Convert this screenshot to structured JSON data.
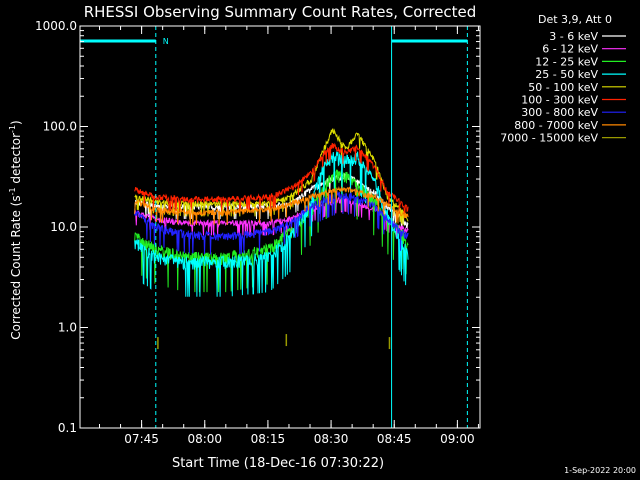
{
  "chart_data": {
    "type": "line",
    "title": "RHESSI Observing Summary Count Rates, Corrected",
    "xlabel": "Start Time (18-Dec-16 07:30:22)",
    "ylabel_main": "Corrected Count Rate (s",
    "ylabel_exp1": "-1",
    "ylabel_mid": " detector",
    "ylabel_exp2": "-1",
    "ylabel_end": ")",
    "yscale": "log",
    "ylim": [
      0.1,
      1000.0
    ],
    "xlim_minutes": [
      0.0,
      95.0
    ],
    "yticks": [
      {
        "value": 1000.0,
        "label": "1000.0"
      },
      {
        "value": 100.0,
        "label": "100.0"
      },
      {
        "value": 10.0,
        "label": "10.0"
      },
      {
        "value": 1.0,
        "label": "1.0"
      },
      {
        "value": 0.1,
        "label": "0.1"
      }
    ],
    "xticks": [
      {
        "minute": 14.63,
        "label": "07:45"
      },
      {
        "minute": 29.63,
        "label": "08:00"
      },
      {
        "minute": 44.63,
        "label": "08:15"
      },
      {
        "minute": 59.63,
        "label": "08:30"
      },
      {
        "minute": 74.63,
        "label": "08:45"
      },
      {
        "minute": 89.63,
        "label": "09:00"
      }
    ],
    "legend_header": "Det 3,9, Att 0",
    "legend_position": "right",
    "series": [
      {
        "name": "3 - 6 keV",
        "color": "#ffffff",
        "x": [
          13,
          18,
          25,
          35,
          45,
          50,
          55,
          60,
          63,
          66,
          70,
          73,
          76,
          78
        ],
        "values": [
          18,
          16,
          16,
          16,
          16,
          17,
          24,
          30,
          32,
          28,
          22,
          16,
          13,
          10
        ]
      },
      {
        "name": "6 - 12 keV",
        "color": "#ff33ff",
        "x": [
          13,
          18,
          25,
          35,
          45,
          50,
          55,
          60,
          63,
          66,
          70,
          73,
          76,
          78
        ],
        "values": [
          14,
          12,
          11,
          11,
          11,
          12,
          15,
          18,
          19,
          17,
          15,
          12,
          10,
          9
        ]
      },
      {
        "name": "12 - 25 keV",
        "color": "#22ee22",
        "x": [
          13,
          18,
          25,
          35,
          45,
          50,
          55,
          58,
          60,
          63,
          66,
          70,
          73,
          76,
          78
        ],
        "values": [
          8,
          6,
          5,
          5,
          6,
          9,
          15,
          25,
          33,
          32,
          26,
          18,
          12,
          9,
          7
        ]
      },
      {
        "name": "25 - 50 keV",
        "color": "#00ffff",
        "x": [
          13,
          18,
          25,
          35,
          45,
          50,
          55,
          58,
          60,
          63,
          66,
          70,
          73,
          76,
          78
        ],
        "values": [
          7,
          5,
          4.5,
          4.5,
          5,
          8,
          18,
          40,
          52,
          45,
          50,
          28,
          13,
          8,
          5
        ]
      },
      {
        "name": "50 - 100 keV",
        "color": "#dddd00",
        "x": [
          13,
          18,
          25,
          35,
          45,
          50,
          55,
          58,
          60,
          63,
          66,
          70,
          73,
          76,
          78
        ],
        "values": [
          20,
          18,
          17,
          17,
          17,
          20,
          30,
          60,
          95,
          60,
          85,
          45,
          20,
          15,
          12
        ]
      },
      {
        "name": "100 - 300 keV",
        "color": "#ff2200",
        "x": [
          13,
          18,
          25,
          35,
          45,
          50,
          55,
          58,
          60,
          63,
          66,
          70,
          73,
          76,
          78
        ],
        "values": [
          24,
          20,
          19,
          19,
          20,
          24,
          35,
          55,
          65,
          55,
          62,
          40,
          22,
          18,
          15
        ]
      },
      {
        "name": "300 - 800 keV",
        "color": "#2222ff",
        "x": [
          13,
          18,
          25,
          35,
          45,
          50,
          55,
          60,
          63,
          66,
          70,
          73,
          76,
          78
        ],
        "values": [
          14,
          10,
          8.5,
          8,
          9,
          11,
          16,
          20,
          21,
          19,
          16,
          12,
          9,
          8
        ]
      },
      {
        "name": "800 - 7000 keV",
        "color": "#ff8800",
        "x": [
          13,
          18,
          25,
          35,
          45,
          50,
          55,
          60,
          63,
          66,
          70,
          73,
          76,
          78
        ],
        "values": [
          18,
          15,
          14,
          14,
          15,
          17,
          20,
          23,
          24,
          22,
          20,
          17,
          14,
          13
        ]
      },
      {
        "name": "7000 - 15000 keV",
        "color": "#999900",
        "x": [
          18.5,
          49,
          73.5
        ],
        "values": [
          0.7,
          0.75,
          0.7
        ]
      }
    ],
    "flags": [
      {
        "name": "N",
        "start": 0.0,
        "end": 18.0
      },
      {
        "name": "",
        "start": 74.0,
        "end": 92.0
      }
    ],
    "timestamp": "1-Sep-2022 20:00"
  },
  "colors": {
    "background": "#000000",
    "axes": "#ffffff",
    "marker_lines": "#00ffff"
  }
}
